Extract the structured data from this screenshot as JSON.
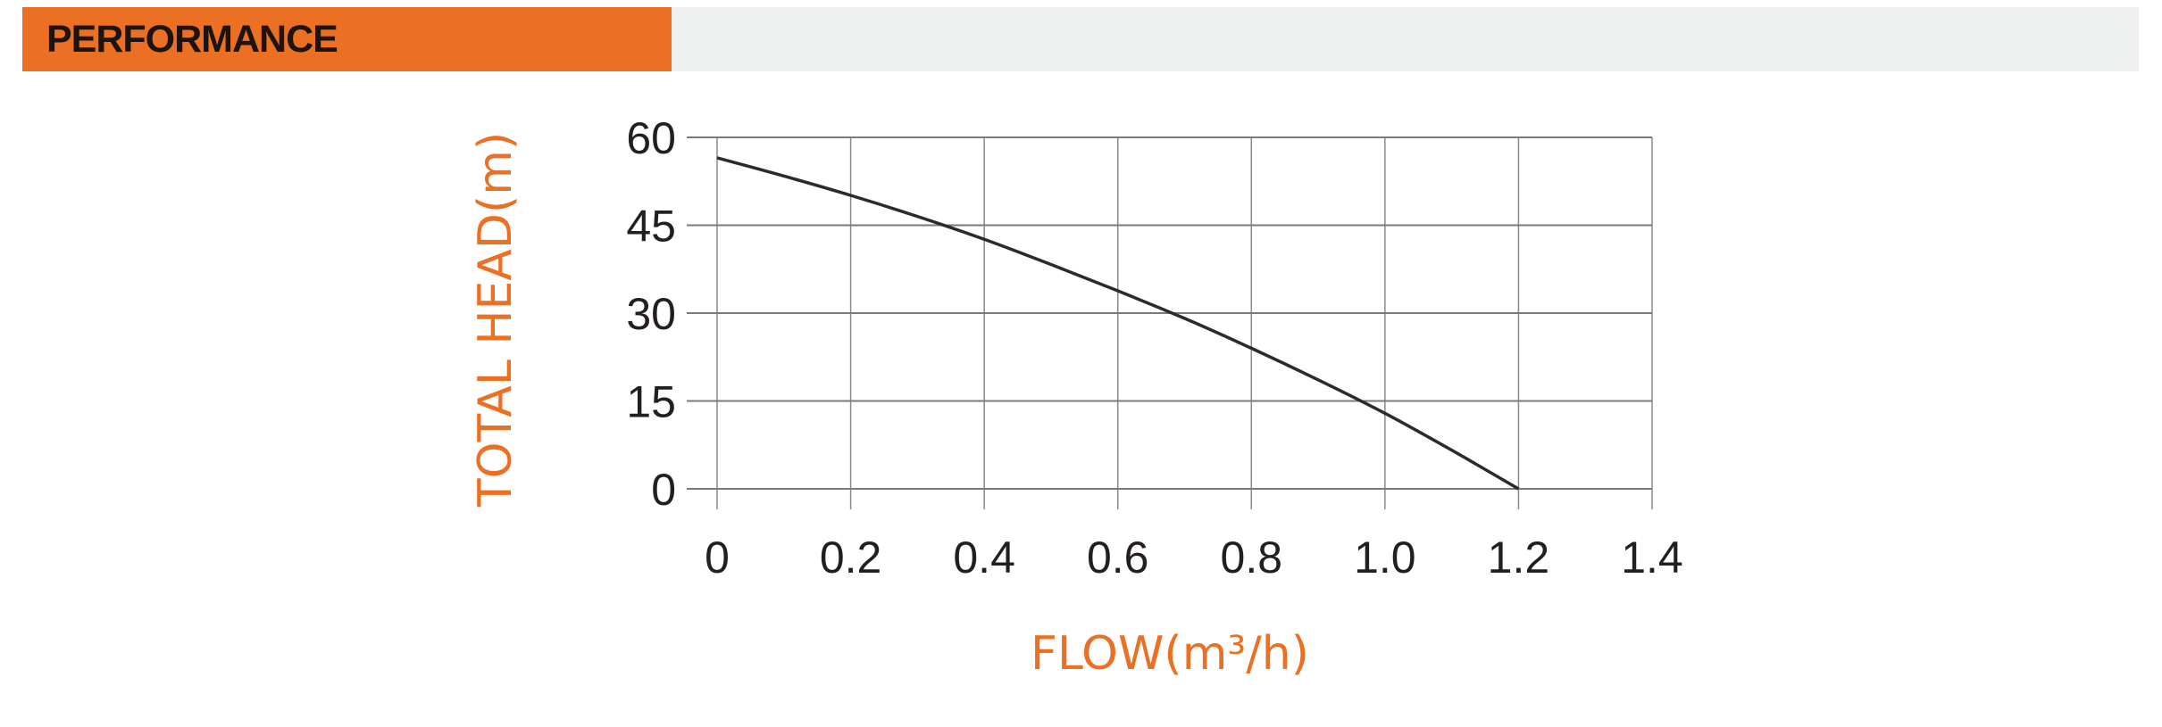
{
  "header": {
    "title": "PERFORMANCE",
    "accent_color": "#EC7023",
    "bar_color": "#EFF0F0"
  },
  "chart_data": {
    "type": "line",
    "title": "",
    "xlabel": "FLOW(m³/h)",
    "ylabel": "TOTAL HEAD(m)",
    "xlim": [
      0,
      1.4
    ],
    "ylim": [
      0,
      60
    ],
    "x_ticks": [
      "0",
      "0.2",
      "0.4",
      "0.6",
      "0.8",
      "1.0",
      "1.2",
      "1.4"
    ],
    "y_ticks": [
      "0",
      "15",
      "30",
      "45",
      "60"
    ],
    "grid": true,
    "series": [
      {
        "x": [
          0,
          0.1,
          0.2,
          0.3,
          0.4,
          0.5,
          0.6,
          0.7,
          0.8,
          0.9,
          1.0,
          1.1,
          1.2
        ],
        "y": [
          56.5,
          53.4,
          50.1,
          46.5,
          42.6,
          38.3,
          33.8,
          29.1,
          24.0,
          18.6,
          12.9,
          6.6,
          0
        ],
        "color": "#2b2b2b"
      }
    ]
  }
}
